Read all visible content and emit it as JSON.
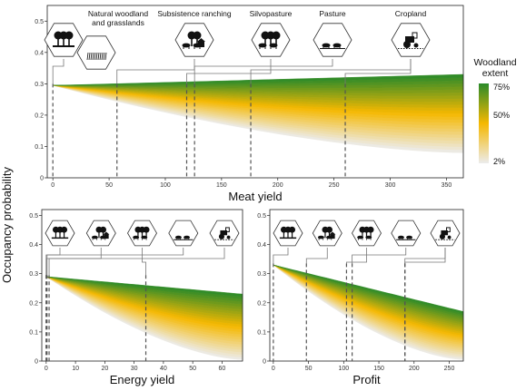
{
  "figure": {
    "ylabel": "Occupancy probability",
    "legend": {
      "title_line1": "Woodland",
      "title_line2": "extent",
      "ticks": [
        "75%",
        "50%",
        "2%"
      ]
    }
  },
  "colors": {
    "high": "#2a8a2a",
    "mid": "#f5b800",
    "low": "#ececec"
  },
  "chart_data": [
    {
      "type": "area",
      "panel": "top",
      "xlabel": "Meat yield",
      "ylabel": "Occupancy probability",
      "xlim": [
        -5,
        365
      ],
      "ylim": [
        0,
        0.55
      ],
      "xticks": [
        0,
        50,
        100,
        150,
        200,
        250,
        300,
        350
      ],
      "yticks": [
        0,
        0.1,
        0.2,
        0.3,
        0.4,
        0.5
      ],
      "band": {
        "start_y": 0.295,
        "upper_end_y": 0.33,
        "lower_end_y": 0.08
      },
      "categories": [
        {
          "name": "Natural woodland and grasslands",
          "label_line1": "Natural woodland",
          "label_line2": "and grasslands",
          "x": 0,
          "icon": "woodland-grassland-icon"
        },
        {
          "name": "Subsistence ranching",
          "label_line1": "Subsistence ranching",
          "label_line2": "",
          "x": 57,
          "icon": "ranching-icon"
        },
        {
          "name": "Silvopasture",
          "label_line1": "Silvopasture",
          "label_line2": "",
          "x": 119,
          "icon": "silvopasture-icon"
        },
        {
          "name": "Silvopasture (second)",
          "label_line1": "",
          "label_line2": "",
          "x": 126,
          "icon": ""
        },
        {
          "name": "Pasture",
          "label_line1": "Pasture",
          "label_line2": "",
          "x": 176,
          "icon": "pasture-icon"
        },
        {
          "name": "Cropland",
          "label_line1": "Cropland",
          "label_line2": "",
          "x": 260,
          "icon": "cropland-icon"
        }
      ]
    },
    {
      "type": "area",
      "panel": "bottom-left",
      "xlabel": "Energy yield",
      "ylabel": "",
      "xlim": [
        -1.5,
        67
      ],
      "ylim": [
        0,
        0.52
      ],
      "xticks": [
        0,
        10,
        20,
        30,
        40,
        50,
        60
      ],
      "yticks": [
        0,
        0.1,
        0.2,
        0.3,
        0.4,
        0.5
      ],
      "band": {
        "start_y": 0.29,
        "upper_end_y": 0.23,
        "lower_end_y": 0.005
      },
      "categories": [
        {
          "name": "Natural woodland and grasslands",
          "x": 0.3,
          "icon": "woodland-grassland-icon"
        },
        {
          "name": "Subsistence ranching",
          "x": 1.0,
          "icon": "ranching-icon"
        },
        {
          "name": "Silvopasture",
          "x": 34,
          "icon": "silvopasture-icon"
        },
        {
          "name": "Pasture",
          "x": 0,
          "icon": "pasture-icon"
        },
        {
          "name": "Cropland",
          "x": 0,
          "icon": "cropland-icon"
        }
      ]
    },
    {
      "type": "area",
      "panel": "bottom-right",
      "xlabel": "Profit",
      "ylabel": "",
      "xlim": [
        -5,
        270
      ],
      "ylim": [
        0,
        0.52
      ],
      "xticks": [
        0,
        50,
        100,
        150,
        200,
        250
      ],
      "yticks": [
        0,
        0.1,
        0.2,
        0.3,
        0.4,
        0.5
      ],
      "band": {
        "start_y": 0.33,
        "upper_end_y": 0.17,
        "lower_end_y": 0.005
      },
      "categories": [
        {
          "name": "Natural woodland and grasslands",
          "x": 0,
          "icon": "woodland-grassland-icon"
        },
        {
          "name": "Subsistence ranching",
          "x": 47,
          "icon": "ranching-icon"
        },
        {
          "name": "Silvopasture",
          "x": 104,
          "icon": "silvopasture-icon"
        },
        {
          "name": "Silvopasture (second)",
          "x": 112,
          "icon": ""
        },
        {
          "name": "Pasture",
          "x": 187,
          "icon": "pasture-icon"
        },
        {
          "name": "Cropland",
          "x": 187,
          "icon": "cropland-icon"
        }
      ]
    }
  ]
}
